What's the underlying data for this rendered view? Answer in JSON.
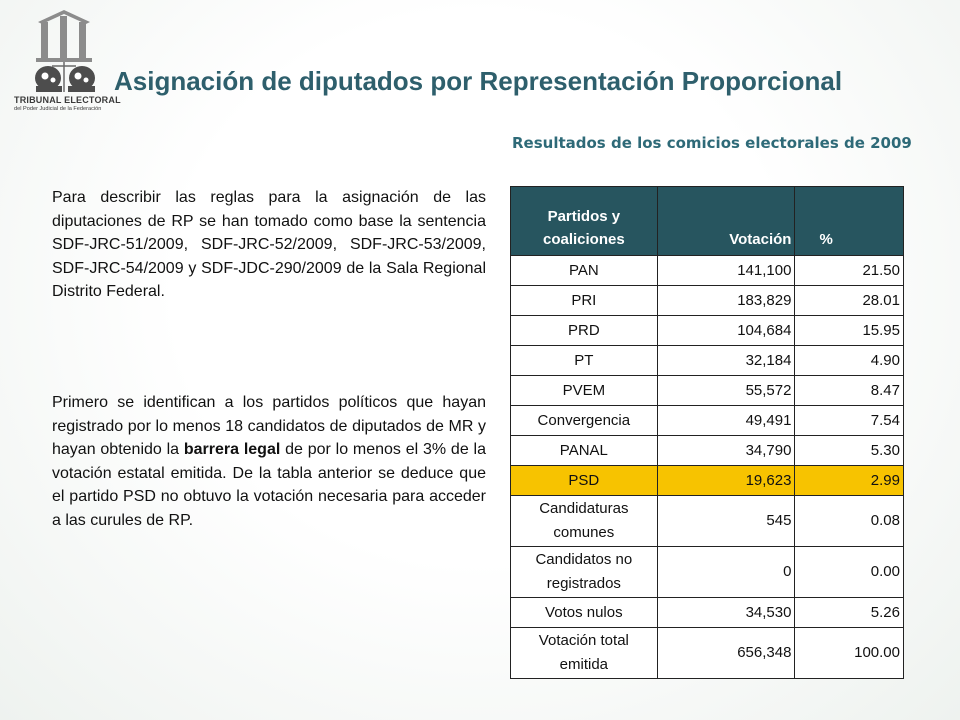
{
  "header": {
    "logo_name": "TRIBUNAL ELECTORAL",
    "logo_subtitle": "del Poder Judicial de la Federación",
    "title": "Asignación de diputados por Representación Proporcional"
  },
  "table_title": "Resultados de los comicios electorales de 2009",
  "paragraph1": "Para describir las reglas para la asignación de las diputaciones de RP se han tomado como base la sentencia SDF-JRC-51/2009, SDF-JRC-52/2009, SDF-JRC-53/2009, SDF-JRC-54/2009 y SDF-JDC-290/2009 de la Sala Regional Distrito Federal.",
  "paragraph2": {
    "before": "Primero se identifican a los partidos políticos que hayan registrado por lo menos 18 candidatos de diputados de MR y hayan obtenido la ",
    "bold": "barrera legal",
    "after": " de por lo menos el 3% de la votación estatal emitida. De la tabla anterior se deduce que el partido PSD no obtuvo la votación necesaria para acceder a las curules de RP."
  },
  "table": {
    "headers": [
      "Partidos y coaliciones",
      "Votación",
      "%"
    ],
    "rows": [
      {
        "party": "PAN",
        "votes": "141,100",
        "pct": "21.50"
      },
      {
        "party": "PRI",
        "votes": "183,829",
        "pct": "28.01"
      },
      {
        "party": "PRD",
        "votes": "104,684",
        "pct": "15.95"
      },
      {
        "party": "PT",
        "votes": "32,184",
        "pct": "4.90"
      },
      {
        "party": "PVEM",
        "votes": "55,572",
        "pct": "8.47"
      },
      {
        "party": "Convergencia",
        "votes": "49,491",
        "pct": "7.54"
      },
      {
        "party": "PANAL",
        "votes": "34,790",
        "pct": "5.30"
      },
      {
        "party": "PSD",
        "votes": "19,623",
        "pct": "2.99"
      },
      {
        "party": "Candidaturas comunes",
        "votes": "545",
        "pct": "0.08"
      },
      {
        "party": "Candidatos no registrados",
        "votes": "0",
        "pct": "0.00"
      },
      {
        "party": "Votos nulos",
        "votes": "34,530",
        "pct": "5.26"
      },
      {
        "party": "Votación total emitida",
        "votes": "656,348",
        "pct": "100.00"
      }
    ]
  },
  "colors": {
    "title": "#2e5f6c",
    "header_bg": "#27555f",
    "highlight": "#f7c300"
  },
  "icons": {
    "logo": "tribunal-electoral-emblem-icon",
    "watermark": "tribunal-electoral-watermark-icon"
  }
}
